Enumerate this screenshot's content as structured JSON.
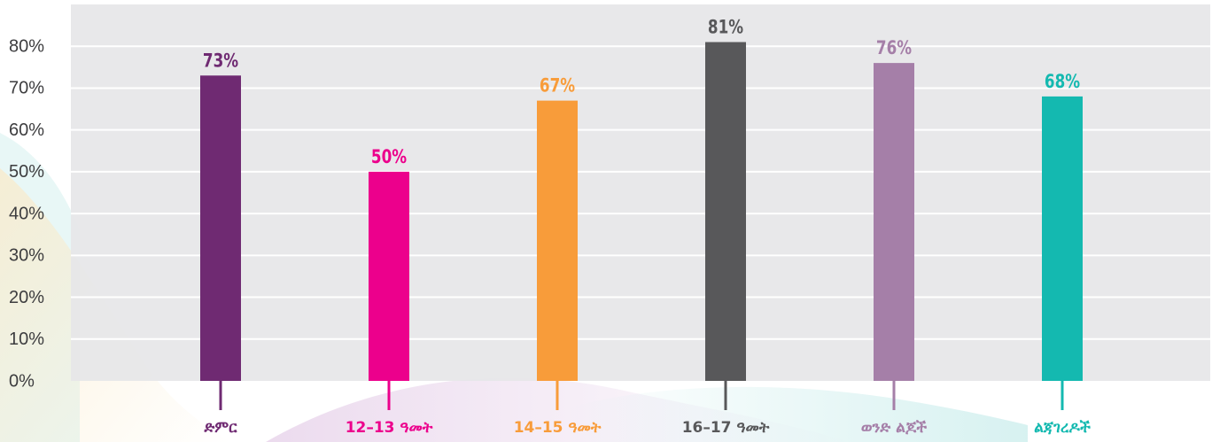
{
  "chart_data": {
    "type": "bar",
    "title": "",
    "xlabel": "",
    "ylabel": "",
    "ylim": [
      0,
      90
    ],
    "y_ticks": [
      0,
      10,
      20,
      30,
      40,
      50,
      60,
      70,
      80
    ],
    "y_tick_labels": [
      "0%",
      "10%",
      "20%",
      "30%",
      "40%",
      "50%",
      "60%",
      "70%",
      "80%"
    ],
    "grid": true,
    "legend": "none",
    "categories": [
      "ድምር",
      "12–13 ዓመት",
      "14–15 ዓመት",
      "16–17 ዓመት",
      "ወንድ ልጆች",
      "ልጃገረዶች"
    ],
    "values": [
      73,
      50,
      67,
      81,
      76,
      68
    ],
    "value_labels": [
      "73%",
      "50%",
      "67%",
      "81%",
      "76%",
      "68%"
    ],
    "colors": [
      "#6f2a72",
      "#ec008c",
      "#f89c3a",
      "#58585a",
      "#a57fa8",
      "#14b9b0"
    ],
    "plot_background": "#e6e6e8",
    "grid_color": "#ffffff"
  }
}
